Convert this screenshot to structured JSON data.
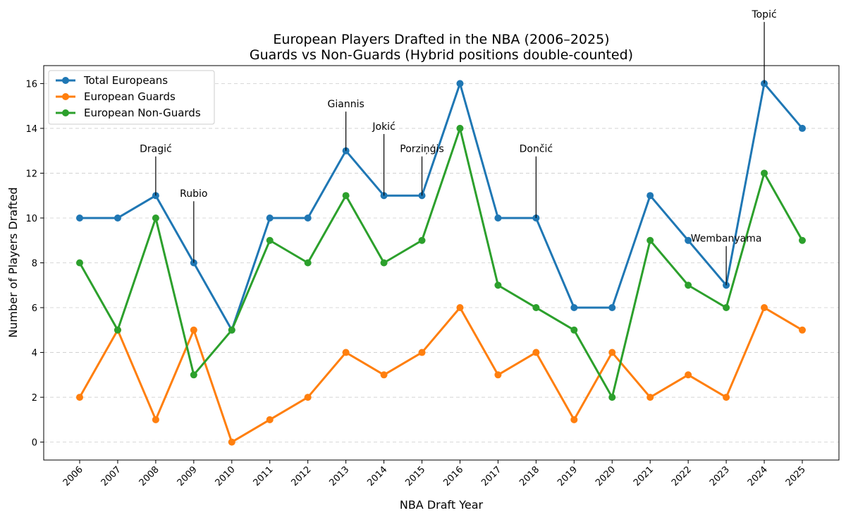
{
  "chart_data": {
    "type": "line",
    "title": "European Players Drafted in the NBA (2006–2025)",
    "subtitle": "Guards vs Non-Guards (Hybrid positions double-counted)",
    "xlabel": "NBA Draft Year",
    "ylabel": "Number of Players Drafted",
    "ylim": [
      -0.8,
      16.8
    ],
    "yticks": [
      0,
      2,
      4,
      6,
      8,
      10,
      12,
      14,
      16
    ],
    "grid": "y dashed",
    "legend": "top-left",
    "x": [
      2006,
      2007,
      2008,
      2009,
      2010,
      2011,
      2012,
      2013,
      2014,
      2015,
      2016,
      2017,
      2018,
      2019,
      2020,
      2021,
      2022,
      2023,
      2024,
      2025
    ],
    "series": [
      {
        "name": "Total Europeans",
        "color": "#1f77b4",
        "values": [
          10,
          10,
          11,
          8,
          5,
          10,
          10,
          13,
          11,
          11,
          16,
          10,
          10,
          6,
          6,
          11,
          9,
          7,
          16,
          14
        ]
      },
      {
        "name": "European Guards",
        "color": "#ff7f0e",
        "values": [
          2,
          5,
          1,
          5,
          0,
          1,
          2,
          4,
          3,
          4,
          6,
          3,
          4,
          1,
          4,
          2,
          3,
          2,
          6,
          5
        ]
      },
      {
        "name": "European Non-Guards",
        "color": "#2ca02c",
        "values": [
          8,
          5,
          10,
          3,
          5,
          9,
          8,
          11,
          8,
          9,
          14,
          7,
          6,
          5,
          2,
          9,
          7,
          6,
          12,
          9
        ]
      }
    ],
    "annotations": [
      {
        "text": "Dragić",
        "year": 2008,
        "value": 11,
        "label_at": 13
      },
      {
        "text": "Rubio",
        "year": 2009,
        "value": 8,
        "label_at": 11
      },
      {
        "text": "Giannis",
        "year": 2013,
        "value": 13,
        "label_at": 15
      },
      {
        "text": "Jokić",
        "year": 2014,
        "value": 11,
        "label_at": 14
      },
      {
        "text": "Porziņģis",
        "year": 2015,
        "value": 11,
        "label_at": 13
      },
      {
        "text": "Dončić",
        "year": 2018,
        "value": 10,
        "label_at": 13
      },
      {
        "text": "Wembanyama",
        "year": 2023,
        "value": 7,
        "label_at": 9
      },
      {
        "text": "Topić",
        "year": 2024,
        "value": 16,
        "label_at": 19
      }
    ]
  }
}
